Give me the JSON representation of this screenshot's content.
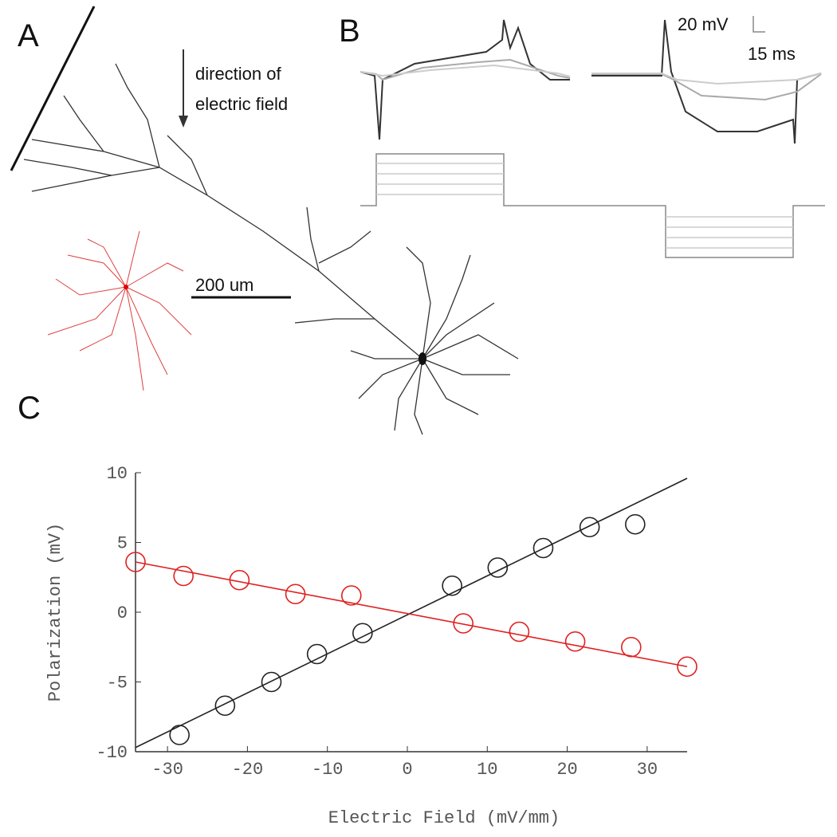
{
  "panels": {
    "a_label": "A",
    "b_label": "B",
    "c_label": "C",
    "field_direction": [
      "direction of",
      "electric field"
    ],
    "scale_length": "200 um",
    "scale_voltage": "20 mV",
    "scale_time": "15 ms"
  },
  "chart_data": {
    "type": "scatter",
    "xlabel": "Electric Field (mV/mm)",
    "ylabel": "Polarization (mV)",
    "xlim": [
      -34,
      35
    ],
    "ylim": [
      -10,
      10
    ],
    "xticks": [
      -30,
      -20,
      -10,
      0,
      10,
      20,
      30
    ],
    "yticks": [
      -10,
      -5,
      0,
      5,
      10
    ],
    "series": [
      {
        "color": "#222222",
        "x": [
          -28.5,
          -22.8,
          -17,
          -11.3,
          -5.6,
          5.6,
          11.3,
          17,
          22.8,
          28.5
        ],
        "values": [
          -8.8,
          -6.7,
          -5,
          -3,
          -1.5,
          1.9,
          3.2,
          4.6,
          6.1,
          6.3
        ]
      },
      {
        "color": "#e02020",
        "x": [
          -34,
          -28,
          -21,
          -14,
          -7,
          7,
          14,
          21,
          28,
          35
        ],
        "values": [
          3.6,
          2.6,
          2.3,
          1.3,
          1.2,
          -0.8,
          -1.4,
          -2.1,
          -2.5,
          -3.9
        ]
      }
    ],
    "fit_lines": [
      {
        "color": "#222222",
        "x": [
          -34,
          35
        ],
        "values": [
          -9.7,
          9.6
        ]
      },
      {
        "color": "#e02020",
        "x": [
          -34,
          35
        ],
        "values": [
          3.6,
          -3.9
        ]
      }
    ]
  }
}
